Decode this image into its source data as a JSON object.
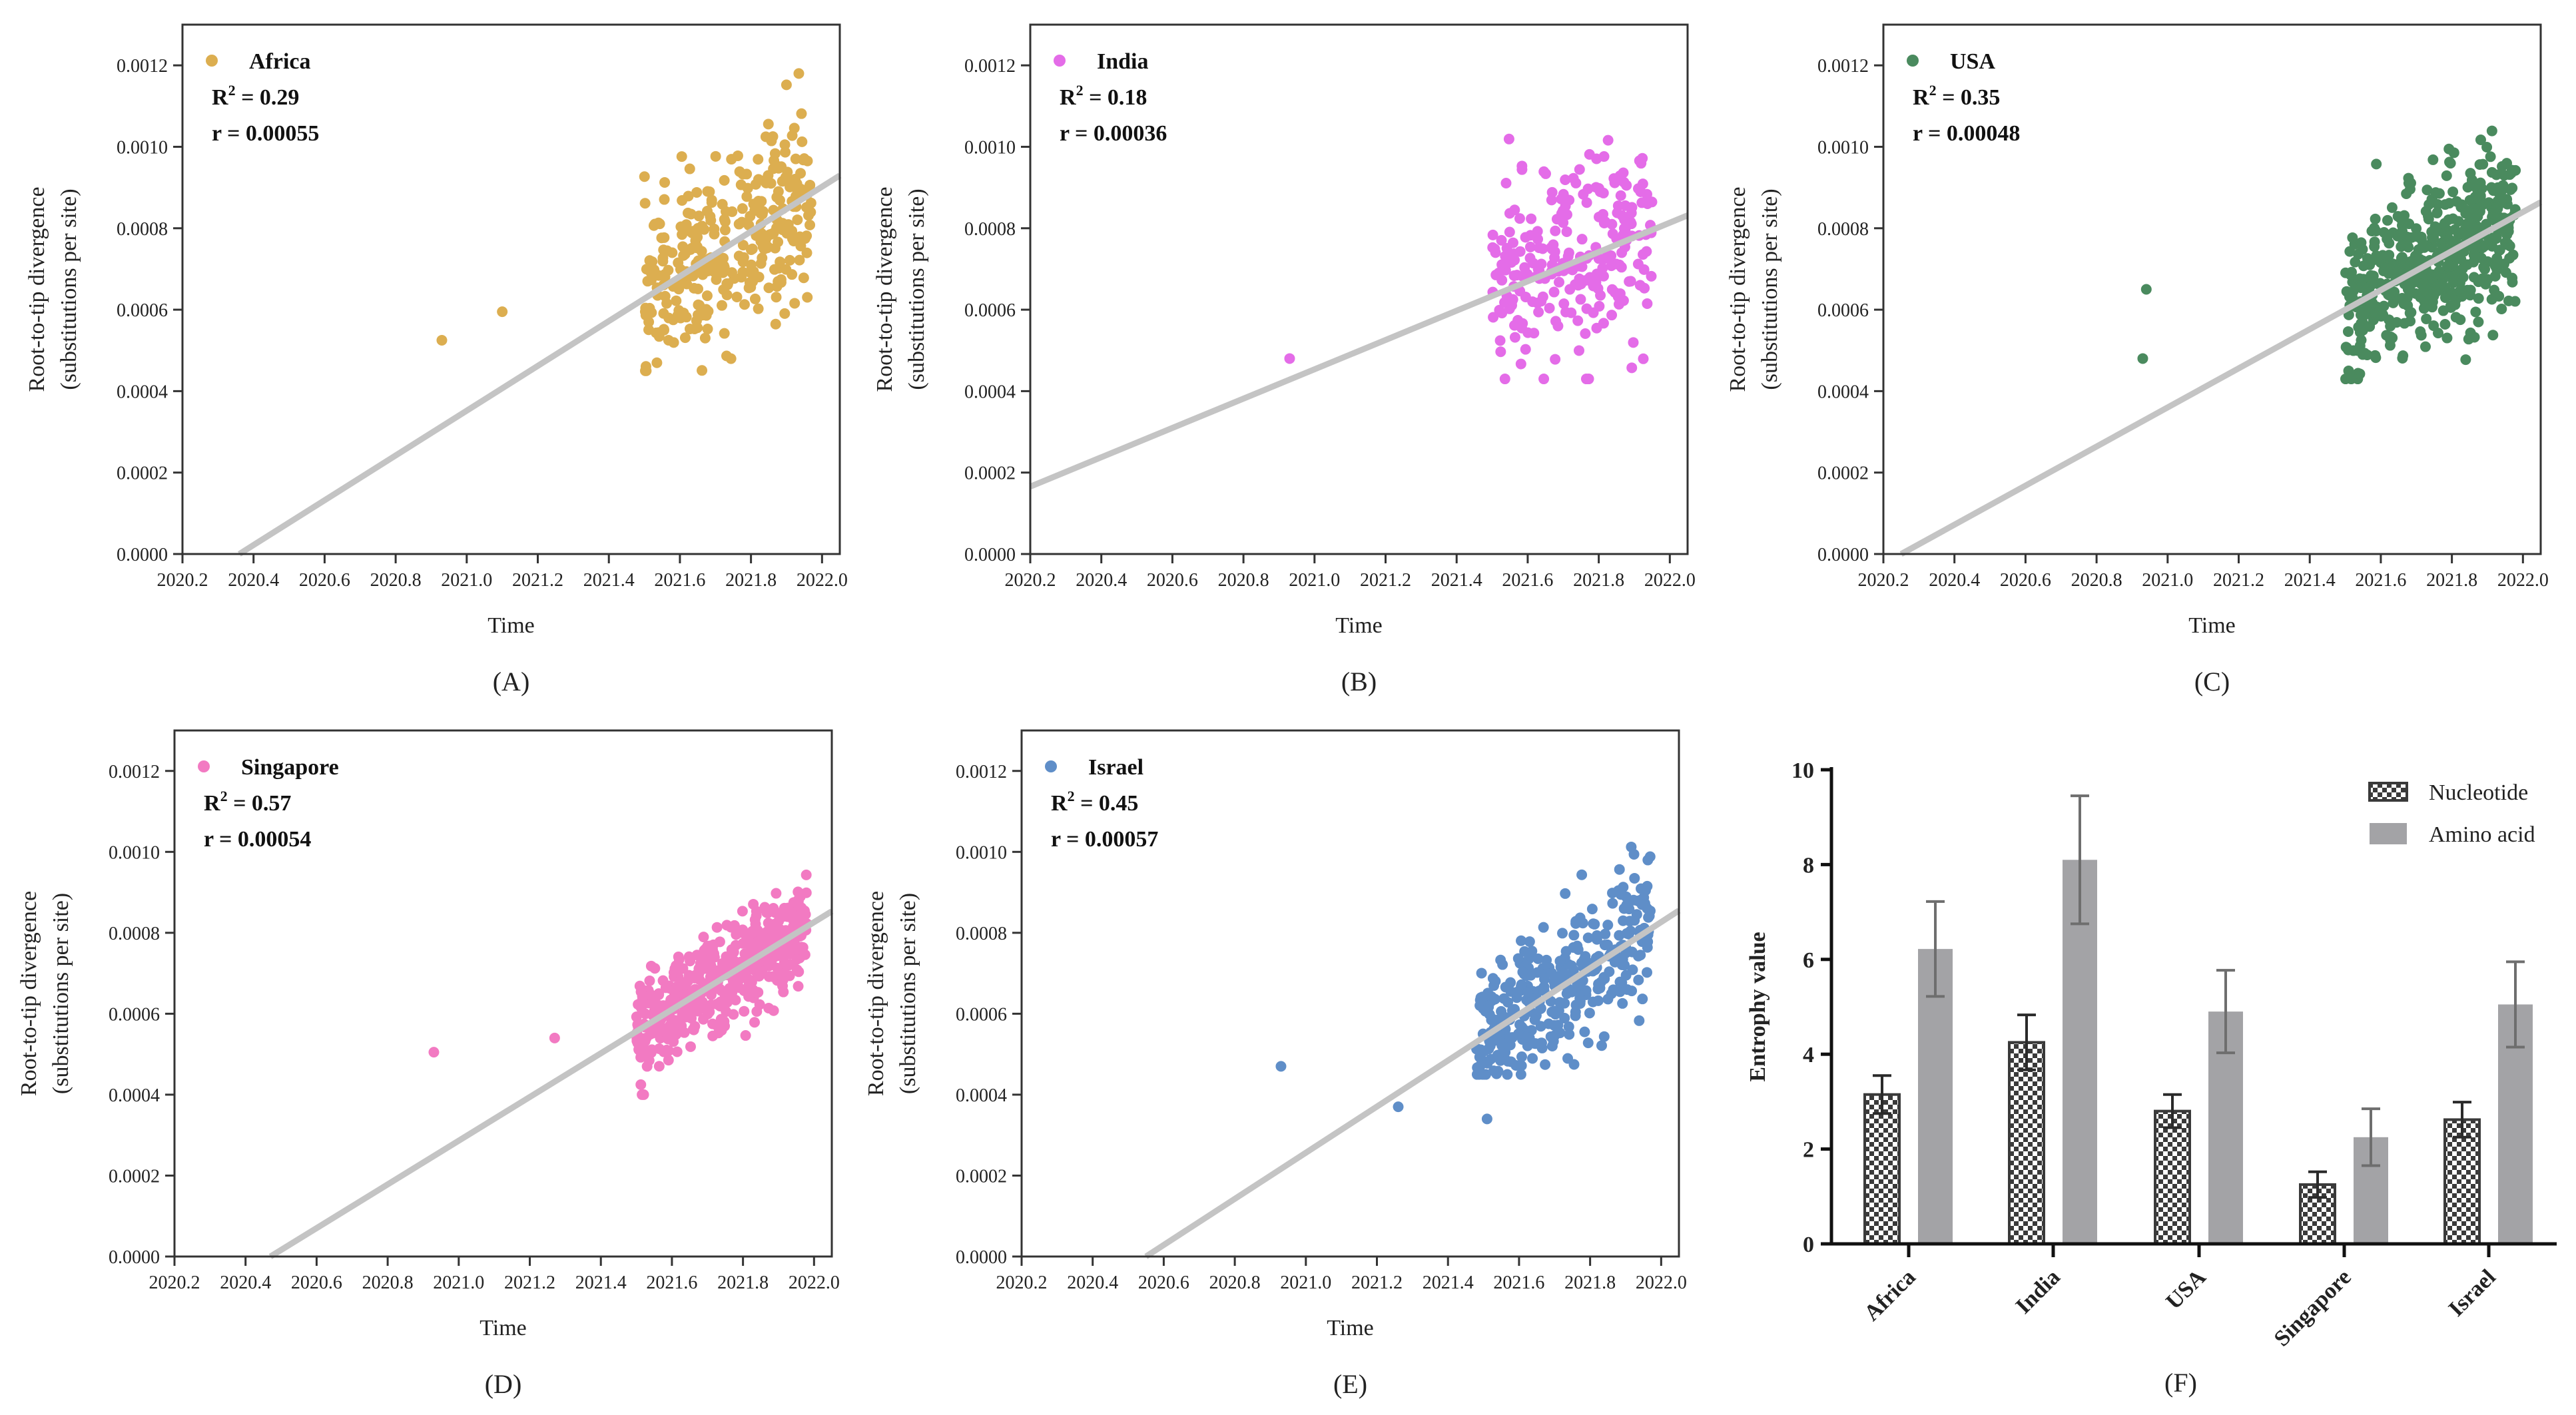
{
  "chart_data": [
    {
      "type": "scatter",
      "panel_label": "(A)",
      "series_name": "Africa",
      "color": "#dcae50",
      "r2_label": "R",
      "r2_value": " = 0.29",
      "rate_label": "r = 0.00055",
      "xlabel": "Time",
      "ylabel": [
        "Root-to-tip divergence",
        "(substitutions per site)"
      ],
      "xlim": [
        2020.2,
        2022.05
      ],
      "ylim": [
        0,
        0.0013
      ],
      "xticks": [
        "2020.2",
        "2020.4",
        "2020.6",
        "2020.8",
        "2021.0",
        "2021.2",
        "2021.4",
        "2021.6",
        "2021.8",
        "2022.0"
      ],
      "yticks": [
        "0.0000",
        "0.0002",
        "0.0004",
        "0.0006",
        "0.0008",
        "0.0010",
        "0.0012"
      ],
      "trend": {
        "slope": 0.00055,
        "x_intercept": 2020.36
      },
      "outliers": [
        [
          2020.93,
          0.000525
        ],
        [
          2021.1,
          0.000595
        ]
      ],
      "cluster": {
        "n": 320,
        "x_range": [
          2021.5,
          2021.97
        ],
        "y_range": [
          0.00045,
          0.00118
        ],
        "sd": 0.00011
      }
    },
    {
      "type": "scatter",
      "panel_label": "(B)",
      "series_name": "India",
      "color": "#e46ce8",
      "r2_label": "R",
      "r2_value": " = 0.18",
      "rate_label": "r = 0.00036",
      "xlabel": "Time",
      "ylabel": [
        "Root-to-tip divergence",
        "(substitutions per site)"
      ],
      "xlim": [
        2020.2,
        2022.05
      ],
      "ylim": [
        0,
        0.0013
      ],
      "xticks": [
        "2020.2",
        "2020.4",
        "2020.6",
        "2020.8",
        "2021.0",
        "2021.2",
        "2021.4",
        "2021.6",
        "2021.8",
        "2022.0"
      ],
      "yticks": [
        "0.0000",
        "0.0002",
        "0.0004",
        "0.0006",
        "0.0008",
        "0.0010",
        "0.0012"
      ],
      "trend": {
        "slope": 0.00036,
        "x_intercept": 2019.74
      },
      "outliers": [
        [
          2020.93,
          0.00048
        ]
      ],
      "cluster": {
        "n": 250,
        "x_range": [
          2021.5,
          2021.95
        ],
        "y_range": [
          0.00043,
          0.00105
        ],
        "sd": 0.00012
      }
    },
    {
      "type": "scatter",
      "panel_label": "(C)",
      "series_name": "USA",
      "color": "#4a8a5e",
      "r2_label": "R",
      "r2_value": " = 0.35",
      "rate_label": "r = 0.00048",
      "xlabel": "Time",
      "ylabel": [
        "Root-to-tip divergence",
        "(substitutions per site)"
      ],
      "xlim": [
        2020.2,
        2022.05
      ],
      "ylim": [
        0,
        0.0013
      ],
      "xticks": [
        "2020.2",
        "2020.4",
        "2020.6",
        "2020.8",
        "2021.0",
        "2021.2",
        "2021.4",
        "2021.6",
        "2021.8",
        "2022.0"
      ],
      "yticks": [
        "0.0000",
        "0.0002",
        "0.0004",
        "0.0006",
        "0.0008",
        "0.0010",
        "0.0012"
      ],
      "trend": {
        "slope": 0.00048,
        "x_intercept": 2020.25
      },
      "outliers": [
        [
          2020.94,
          0.00065
        ],
        [
          2020.93,
          0.00048
        ]
      ],
      "cluster": {
        "n": 500,
        "x_range": [
          2021.5,
          2021.98
        ],
        "y_range": [
          0.00043,
          0.00113
        ],
        "sd": 0.0001
      }
    },
    {
      "type": "scatter",
      "panel_label": "(D)",
      "series_name": "Singapore",
      "color": "#f27ac2",
      "r2_label": "R",
      "r2_value": " = 0.57",
      "rate_label": "r = 0.00054",
      "xlabel": "Time",
      "ylabel": [
        "Root-to-tip divergence",
        "(substitutions per site)"
      ],
      "xlim": [
        2020.2,
        2022.05
      ],
      "ylim": [
        0,
        0.0013
      ],
      "xticks": [
        "2020.2",
        "2020.4",
        "2020.6",
        "2020.8",
        "2021.0",
        "2021.2",
        "2021.4",
        "2021.6",
        "2021.8",
        "2022.0"
      ],
      "yticks": [
        "0.0000",
        "0.0002",
        "0.0004",
        "0.0006",
        "0.0008",
        "0.0010",
        "0.0012"
      ],
      "trend": {
        "slope": 0.00054,
        "x_intercept": 2020.47
      },
      "outliers": [
        [
          2020.93,
          0.000505
        ],
        [
          2021.27,
          0.00054
        ]
      ],
      "cluster": {
        "n": 500,
        "x_range": [
          2021.5,
          2021.98
        ],
        "y_range": [
          0.0004,
          0.001
        ],
        "sd": 6e-05
      }
    },
    {
      "type": "scatter",
      "panel_label": "(E)",
      "series_name": "Israel",
      "color": "#5f8ec8",
      "r2_label": "R",
      "r2_value": " = 0.45",
      "rate_label": "r = 0.00057",
      "xlabel": "Time",
      "ylabel": [
        "Root-to-tip divergence",
        "(substitutions per site)"
      ],
      "xlim": [
        2020.2,
        2022.05
      ],
      "ylim": [
        0,
        0.0013
      ],
      "xticks": [
        "2020.2",
        "2020.4",
        "2020.6",
        "2020.8",
        "2021.0",
        "2021.2",
        "2021.4",
        "2021.6",
        "2021.8",
        "2022.0"
      ],
      "yticks": [
        "0.0000",
        "0.0002",
        "0.0004",
        "0.0006",
        "0.0008",
        "0.0010",
        "0.0012"
      ],
      "trend": {
        "slope": 0.00057,
        "x_intercept": 2020.55
      },
      "outliers": [
        [
          2020.93,
          0.00047
        ],
        [
          2021.26,
          0.00037
        ],
        [
          2021.51,
          0.00034
        ]
      ],
      "cluster": {
        "n": 350,
        "x_range": [
          2021.48,
          2021.97
        ],
        "y_range": [
          0.00045,
          0.00105
        ],
        "sd": 9e-05
      }
    },
    {
      "type": "bar",
      "panel_label": "(F)",
      "ylabel": "Entrophy value",
      "ylim": [
        0,
        10
      ],
      "yticks": [
        "0",
        "2",
        "4",
        "6",
        "8",
        "10"
      ],
      "categories": [
        "Africa",
        "India",
        "USA",
        "Singapore",
        "Israel"
      ],
      "series": [
        {
          "name": "Nucleotide",
          "pattern": "checkerboard",
          "color": "#3a3a3a",
          "values": [
            3.15,
            4.25,
            2.8,
            1.25,
            2.62
          ],
          "errors": [
            0.4,
            0.58,
            0.35,
            0.27,
            0.37
          ]
        },
        {
          "name": "Amino acid",
          "color": "#a3a3a6",
          "values": [
            6.22,
            8.1,
            4.9,
            2.25,
            5.05
          ],
          "errors": [
            1.0,
            1.35,
            0.87,
            0.6,
            0.9
          ]
        }
      ],
      "legend_position": "top-right"
    }
  ]
}
